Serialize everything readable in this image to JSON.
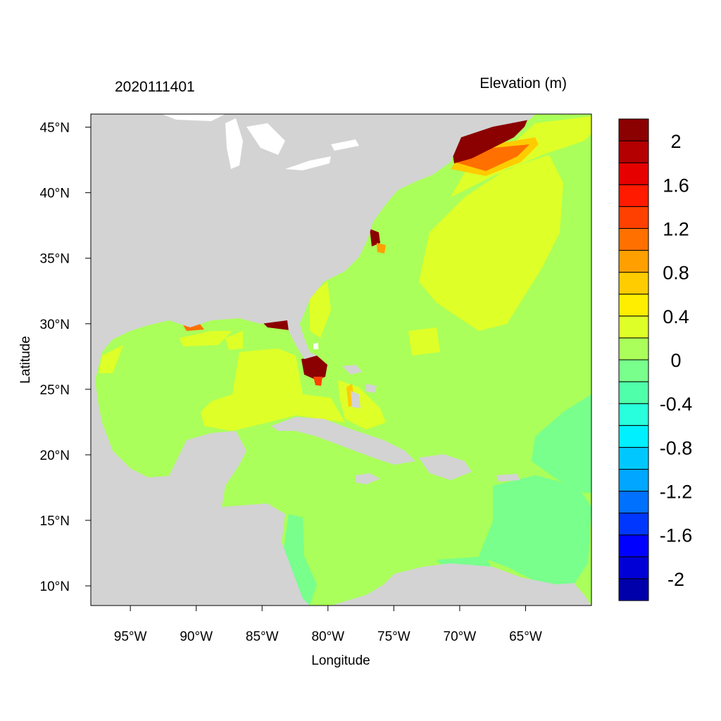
{
  "title_left": "2020111401",
  "title_right": "Elevation (m)",
  "map": {
    "xlabel": "Longitude",
    "ylabel": "Latitude",
    "lon_range": [
      -98,
      -60
    ],
    "lat_range": [
      8.5,
      46
    ],
    "x_ticks": [
      {
        "value": -95,
        "label": "95°W"
      },
      {
        "value": -90,
        "label": "90°W"
      },
      {
        "value": -85,
        "label": "85°W"
      },
      {
        "value": -80,
        "label": "80°W"
      },
      {
        "value": -75,
        "label": "75°W"
      },
      {
        "value": -70,
        "label": "70°W"
      },
      {
        "value": -65,
        "label": "65°W"
      }
    ],
    "y_ticks": [
      {
        "value": 45,
        "label": "45°N"
      },
      {
        "value": 40,
        "label": "40°N"
      },
      {
        "value": 35,
        "label": "35°N"
      },
      {
        "value": 30,
        "label": "30°N"
      },
      {
        "value": 25,
        "label": "25°N"
      },
      {
        "value": 20,
        "label": "20°N"
      },
      {
        "value": 15,
        "label": "15°N"
      },
      {
        "value": 10,
        "label": "10°N"
      }
    ],
    "colors": {
      "land": "#d3d3d3",
      "water_near_zero": "#aaff5a",
      "water_positive": "#dfff28",
      "water_negative": "#78ff8c"
    }
  },
  "colorbar": {
    "colors": [
      "#0000aa",
      "#0000d6",
      "#0000ff",
      "#0037ff",
      "#0070ff",
      "#00a6ff",
      "#00c8ff",
      "#00f0ff",
      "#28ffdc",
      "#50ffaa",
      "#78ff8c",
      "#aaff5a",
      "#dfff28",
      "#ffee00",
      "#ffcc00",
      "#ffa000",
      "#ff7000",
      "#ff4000",
      "#ff1a00",
      "#e60000",
      "#b40000",
      "#8b0000"
    ],
    "labels": [
      {
        "value": 2,
        "label": "2"
      },
      {
        "value": 1.6,
        "label": "1.6"
      },
      {
        "value": 1.2,
        "label": "1.2"
      },
      {
        "value": 0.8,
        "label": "0.8"
      },
      {
        "value": 0.4,
        "label": "0.4"
      },
      {
        "value": 0,
        "label": "0"
      },
      {
        "value": -0.4,
        "label": "-0.4"
      },
      {
        "value": -0.8,
        "label": "-0.8"
      },
      {
        "value": -1.2,
        "label": "-1.2"
      },
      {
        "value": -1.6,
        "label": "-1.6"
      },
      {
        "value": -2,
        "label": "-2"
      }
    ]
  }
}
